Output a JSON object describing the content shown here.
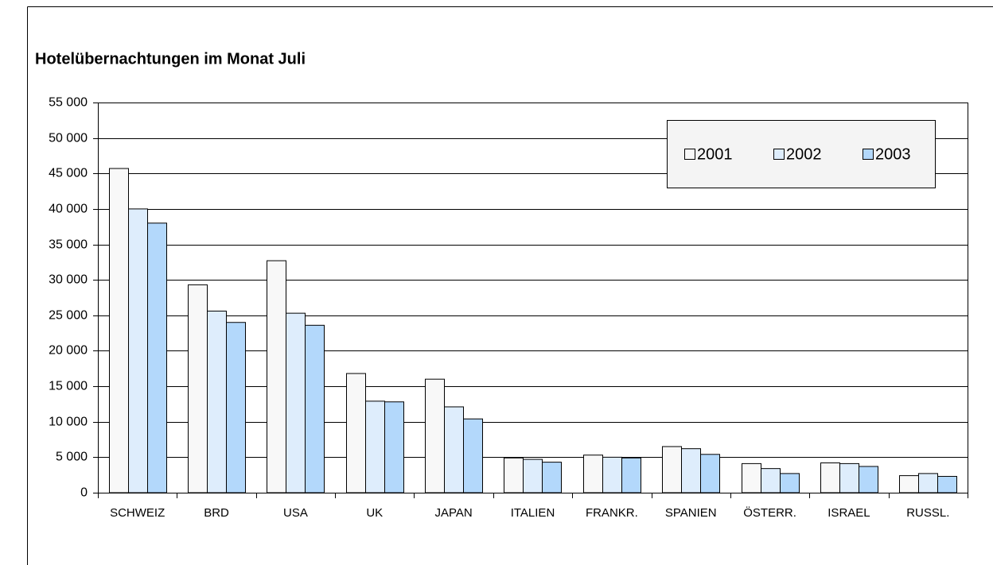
{
  "chart_data": {
    "type": "bar",
    "title": "Hotelübernachtungen im Monat Juli",
    "categories": [
      "SCHWEIZ",
      "BRD",
      "USA",
      "UK",
      "JAPAN",
      "ITALIEN",
      "FRANKR.",
      "SPANIEN",
      "ÖSTERR.",
      "ISRAEL",
      "RUSSL."
    ],
    "series": [
      {
        "name": "2001",
        "color": "#f8f8f8",
        "values": [
          45700,
          29300,
          32700,
          16800,
          16000,
          4900,
          5300,
          6500,
          4100,
          4200,
          2400
        ]
      },
      {
        "name": "2002",
        "color": "#deedfc",
        "values": [
          40000,
          25600,
          25300,
          12900,
          12100,
          4700,
          5000,
          6200,
          3400,
          4100,
          2700
        ]
      },
      {
        "name": "2003",
        "color": "#b3d8fb",
        "values": [
          38000,
          24000,
          23600,
          12800,
          10400,
          4300,
          4900,
          5400,
          2700,
          3700,
          2300
        ]
      }
    ],
    "ylim": [
      0,
      55000
    ],
    "yticks": [
      0,
      {
        "value": 5000,
        "label": "5 000"
      },
      {
        "value": 10000,
        "label": "10 000"
      },
      {
        "value": 15000,
        "label": "15 000"
      },
      {
        "value": 20000,
        "label": "20 000"
      },
      {
        "value": 25000,
        "label": "25 000"
      },
      {
        "value": 30000,
        "label": "30 000"
      },
      {
        "value": 35000,
        "label": "35 000"
      },
      {
        "value": 40000,
        "label": "40 000"
      },
      {
        "value": 45000,
        "label": "45 000"
      },
      {
        "value": 50000,
        "label": "50 000"
      },
      {
        "value": 55000,
        "label": "55 000"
      }
    ],
    "grid": true,
    "legend": "top-right"
  }
}
